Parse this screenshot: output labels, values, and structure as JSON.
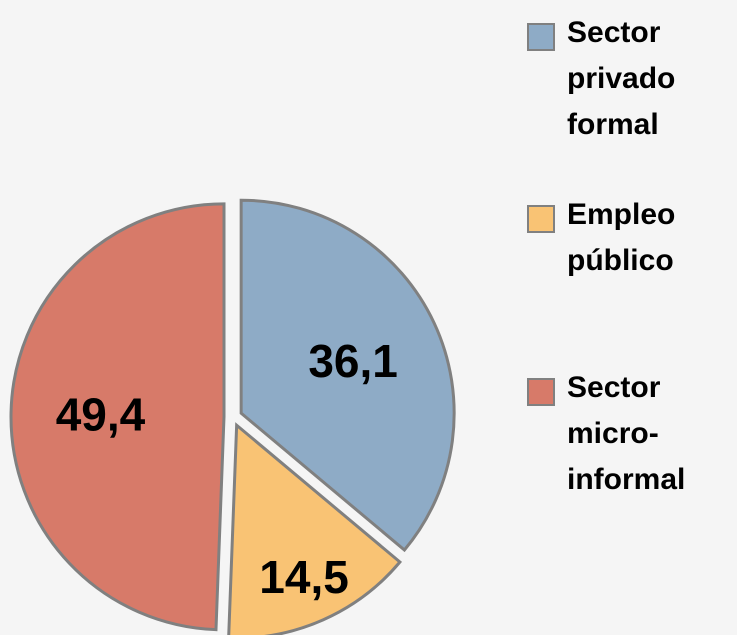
{
  "chart_data": {
    "type": "pie",
    "categories": [
      "Sector privado formal",
      "Empleo público",
      "Sector micro-informal"
    ],
    "values": [
      36.1,
      14.5,
      49.4
    ],
    "value_labels": [
      "36,1",
      "14,5",
      "49,4"
    ],
    "colors": [
      "#8eabc6",
      "#f9c374",
      "#d77a69"
    ],
    "legend": "right"
  }
}
